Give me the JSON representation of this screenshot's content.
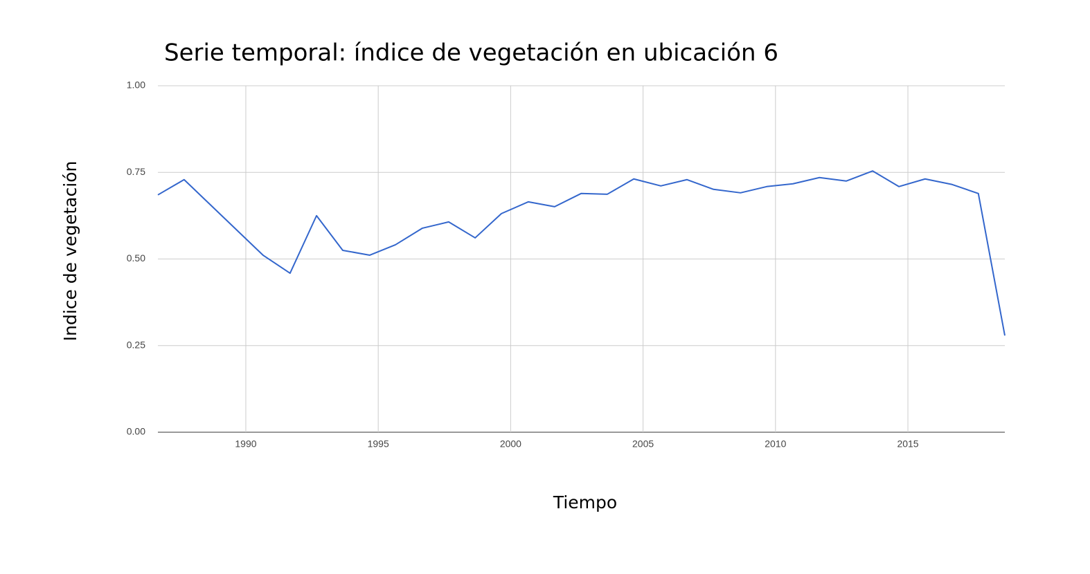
{
  "chart_data": {
    "type": "line",
    "title": "Serie temporal: índice de vegetación en ubicación 6",
    "x_label": "Tiempo",
    "y_label": "Indice de vegetación",
    "x": [
      1986.68,
      1987.67,
      1990.65,
      1991.67,
      1992.67,
      1993.66,
      1994.68,
      1995.65,
      1996.67,
      1997.66,
      1998.66,
      1999.65,
      2000.67,
      2001.66,
      2002.66,
      2003.65,
      2004.65,
      2005.67,
      2006.66,
      2007.66,
      2008.68,
      2009.67,
      2010.66,
      2011.66,
      2012.67,
      2013.67,
      2014.66,
      2015.65,
      2016.67,
      2017.66,
      2018.66
    ],
    "series": [
      {
        "name": "Indice de vegetación",
        "color": "#3366cc",
        "values": [
          0.685,
          0.729,
          0.511,
          0.459,
          0.625,
          0.525,
          0.511,
          0.541,
          0.589,
          0.607,
          0.561,
          0.631,
          0.665,
          0.651,
          0.689,
          0.687,
          0.731,
          0.711,
          0.729,
          0.701,
          0.691,
          0.709,
          0.717,
          0.735,
          0.725,
          0.754,
          0.709,
          0.731,
          0.715,
          0.689,
          0.279
        ]
      }
    ],
    "xlim": [
      1986.68,
      2018.66
    ],
    "xticks": [
      1990,
      1995,
      2000,
      2005,
      2010,
      2015
    ],
    "ylim": [
      0,
      1
    ],
    "yticks": [
      {
        "value": 0,
        "label": "0.00"
      },
      0.25,
      {
        "value": 0.5,
        "label": "0.50"
      },
      0.75,
      {
        "value": 1,
        "label": "1.00"
      }
    ],
    "grid": true
  }
}
